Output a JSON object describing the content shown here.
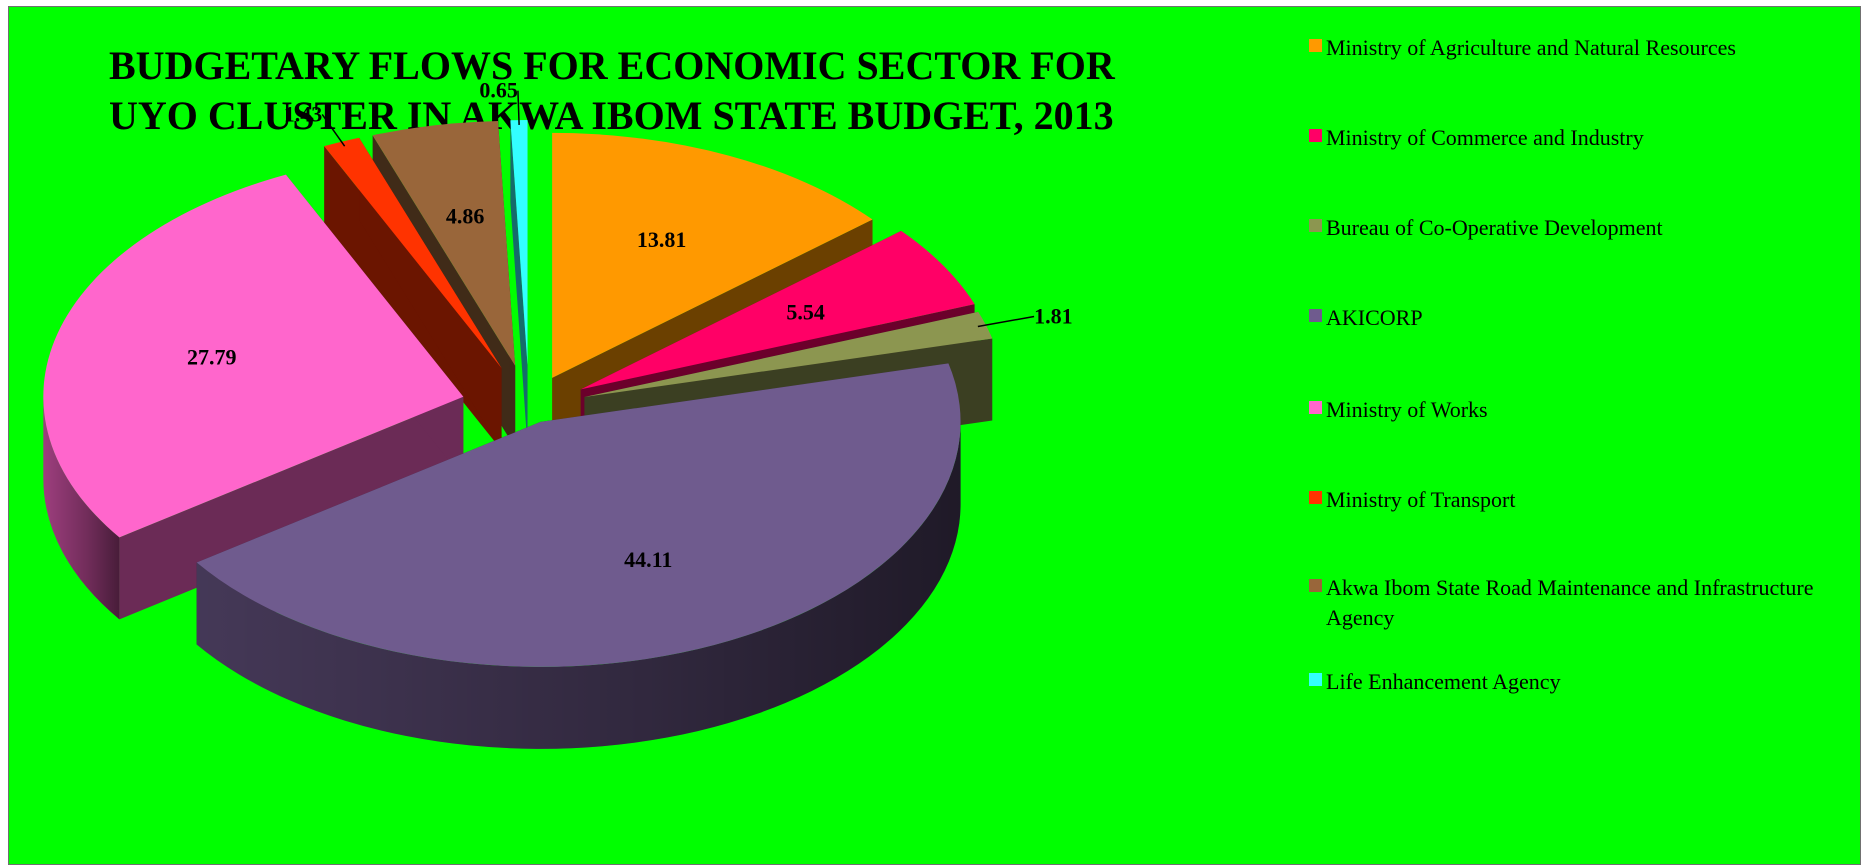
{
  "chart_data": {
    "type": "pie",
    "title": "BUDGETARY FLOWS FOR ECONOMIC SECTOR FOR UYO CLUSTER  IN AKWA IBOM STATE BUDGET, 2013",
    "title_lines": [
      "BUDGETARY FLOWS FOR ECONOMIC SECTOR FOR",
      "UYO CLUSTER  IN AKWA IBOM STATE BUDGET, 2013"
    ],
    "style": "3d-exploded",
    "legend_position": "right",
    "background_color": "#00ff00",
    "slices": [
      {
        "label": "Ministry of Agriculture and Natural Resources",
        "value": 13.81,
        "value_text": "13.81",
        "color": "#ff9900"
      },
      {
        "label": "Ministry of Commerce and Industry",
        "value": 5.54,
        "value_text": "5.54",
        "color": "#ff0066"
      },
      {
        "label": "Bureau of Co-Operative Development",
        "value": 1.81,
        "value_text": "1.81",
        "color": "#8c9650"
      },
      {
        "label": "AKICORP",
        "value": 44.11,
        "value_text": "44.11",
        "color": "#6f5b8e"
      },
      {
        "label": "Ministry of Works",
        "value": 27.79,
        "value_text": "27.79",
        "color": "#ff66cc"
      },
      {
        "label": "Ministry of Transport",
        "value": 1.43,
        "value_text": "1.43",
        "color": "#ff3300"
      },
      {
        "label": "Akwa Ibom State Road Maintenance and Infrastructure Agency",
        "value": 4.86,
        "value_text": "4.86",
        "color": "#99663a"
      },
      {
        "label": "Life Enhancement Agency",
        "value": 0.65,
        "value_text": "0.65",
        "color": "#33ffff"
      }
    ]
  }
}
